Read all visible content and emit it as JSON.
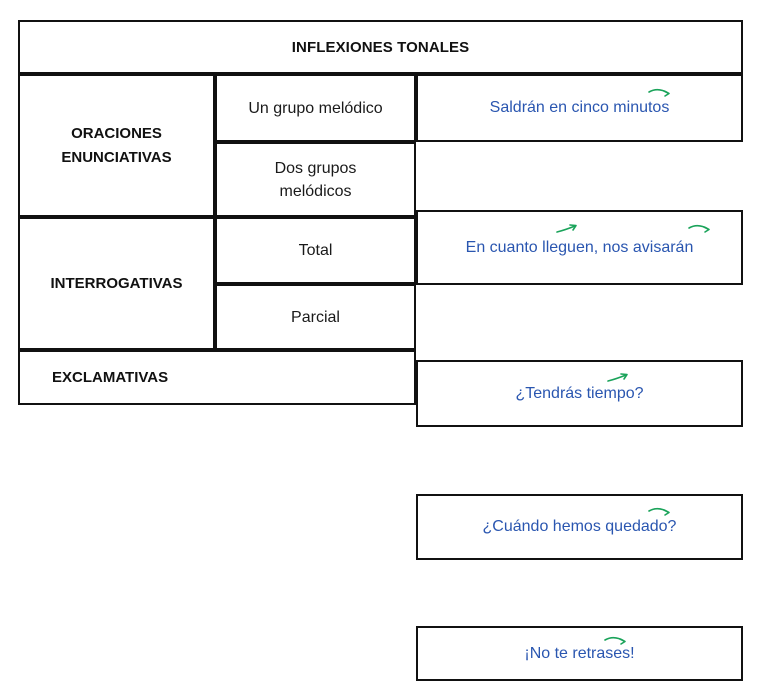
{
  "table": {
    "title": "INFLEXIONES TONALES",
    "categories": {
      "enunciativas": "ORACIONES ENUNCIATIVAS",
      "interrogativas": "INTERROGATIVAS",
      "exclamativas": "EXCLAMATIVAS"
    },
    "subtypes": {
      "un_grupo": "Un grupo melódico",
      "dos_grupos": "Dos grupos melódicos",
      "total": "Total",
      "parcial": "Parcial"
    },
    "examples": {
      "un_grupo": "Saldrán en cinco minutos",
      "dos_grupos": "En cuanto lleguen, nos avisarán",
      "total": "¿Tendrás tiempo?",
      "parcial": "¿Cuándo hemos quedado?",
      "exclamativa": "¡No te retrases!"
    },
    "intonation_arrow_icon": "curved-arrow-right-icon",
    "colors": {
      "example_text": "#2a56b0",
      "arrow": "#1aa35a",
      "border": "#111111"
    }
  }
}
